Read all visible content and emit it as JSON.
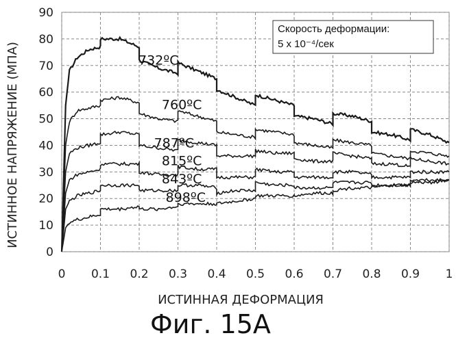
{
  "chart_data": {
    "type": "line",
    "xlabel": "ИСТИННАЯ ДЕФОРМАЦИЯ",
    "ylabel": "ИСТИННОЕ НАПРЯЖЕНИЕ (МПА)",
    "xlim": [
      0,
      1
    ],
    "ylim": [
      0,
      90
    ],
    "x_ticks": [
      "0",
      "0.1",
      "0.2",
      "0.3",
      "0.4",
      "0.5",
      "0.6",
      "0.7",
      "0.8",
      "0.9",
      "1"
    ],
    "y_ticks": [
      "0",
      "10",
      "20",
      "30",
      "40",
      "50",
      "60",
      "70",
      "80",
      "90"
    ],
    "grid": true,
    "annotation": {
      "line1": "Скорость деформации:",
      "line2": "5 x 10⁻⁴/сек"
    },
    "caption": "Фиг. 15А",
    "series": [
      {
        "name": "732ºС",
        "points": [
          [
            0,
            0
          ],
          [
            0.01,
            55
          ],
          [
            0.02,
            68
          ],
          [
            0.04,
            73
          ],
          [
            0.07,
            76
          ],
          [
            0.1,
            77
          ],
          [
            0.1,
            80
          ],
          [
            0.15,
            80
          ],
          [
            0.2,
            77
          ],
          [
            0.2,
            72
          ],
          [
            0.25,
            69
          ],
          [
            0.3,
            67
          ],
          [
            0.3,
            71
          ],
          [
            0.35,
            68
          ],
          [
            0.4,
            65
          ],
          [
            0.4,
            61
          ],
          [
            0.45,
            58
          ],
          [
            0.5,
            55
          ],
          [
            0.5,
            59
          ],
          [
            0.55,
            57
          ],
          [
            0.6,
            55
          ],
          [
            0.6,
            51
          ],
          [
            0.65,
            50
          ],
          [
            0.7,
            48
          ],
          [
            0.7,
            52
          ],
          [
            0.75,
            51
          ],
          [
            0.8,
            49
          ],
          [
            0.8,
            45
          ],
          [
            0.85,
            44
          ],
          [
            0.9,
            42
          ],
          [
            0.9,
            46
          ],
          [
            0.95,
            44
          ],
          [
            1.0,
            41
          ]
        ]
      },
      {
        "name": "760ºС",
        "points": [
          [
            0,
            0
          ],
          [
            0.01,
            40
          ],
          [
            0.02,
            49
          ],
          [
            0.04,
            53
          ],
          [
            0.07,
            54
          ],
          [
            0.1,
            55
          ],
          [
            0.1,
            57
          ],
          [
            0.15,
            58
          ],
          [
            0.2,
            56
          ],
          [
            0.2,
            52
          ],
          [
            0.25,
            50
          ],
          [
            0.3,
            49
          ],
          [
            0.3,
            53
          ],
          [
            0.35,
            51
          ],
          [
            0.4,
            49
          ],
          [
            0.4,
            45
          ],
          [
            0.45,
            44
          ],
          [
            0.5,
            43
          ],
          [
            0.5,
            46
          ],
          [
            0.55,
            45
          ],
          [
            0.6,
            44
          ],
          [
            0.6,
            41
          ],
          [
            0.65,
            40
          ],
          [
            0.7,
            39
          ],
          [
            0.7,
            42
          ],
          [
            0.75,
            41
          ],
          [
            0.8,
            40
          ],
          [
            0.8,
            37
          ],
          [
            0.85,
            36
          ],
          [
            0.9,
            35
          ],
          [
            0.9,
            38
          ],
          [
            0.95,
            37
          ],
          [
            1.0,
            36
          ]
        ]
      },
      {
        "name": "787ºС",
        "points": [
          [
            0,
            0
          ],
          [
            0.01,
            30
          ],
          [
            0.02,
            37
          ],
          [
            0.04,
            39
          ],
          [
            0.07,
            40
          ],
          [
            0.1,
            41
          ],
          [
            0.1,
            44
          ],
          [
            0.15,
            45
          ],
          [
            0.2,
            44
          ],
          [
            0.2,
            40
          ],
          [
            0.25,
            39
          ],
          [
            0.3,
            38
          ],
          [
            0.3,
            42
          ],
          [
            0.35,
            41
          ],
          [
            0.4,
            40
          ],
          [
            0.4,
            36
          ],
          [
            0.45,
            36
          ],
          [
            0.5,
            36
          ],
          [
            0.5,
            38
          ],
          [
            0.55,
            37
          ],
          [
            0.6,
            37
          ],
          [
            0.6,
            35
          ],
          [
            0.65,
            34
          ],
          [
            0.7,
            34
          ],
          [
            0.7,
            37
          ],
          [
            0.75,
            36
          ],
          [
            0.8,
            35
          ],
          [
            0.8,
            33
          ],
          [
            0.85,
            33
          ],
          [
            0.9,
            32
          ],
          [
            0.9,
            35
          ],
          [
            0.95,
            34
          ],
          [
            1.0,
            33
          ]
        ]
      },
      {
        "name": "815ºС",
        "points": [
          [
            0,
            0
          ],
          [
            0.01,
            22
          ],
          [
            0.02,
            27
          ],
          [
            0.04,
            29
          ],
          [
            0.07,
            30
          ],
          [
            0.1,
            31
          ],
          [
            0.1,
            33
          ],
          [
            0.15,
            33
          ],
          [
            0.2,
            33
          ],
          [
            0.2,
            30
          ],
          [
            0.25,
            29
          ],
          [
            0.3,
            29
          ],
          [
            0.3,
            32
          ],
          [
            0.35,
            31
          ],
          [
            0.4,
            31
          ],
          [
            0.4,
            28
          ],
          [
            0.45,
            28
          ],
          [
            0.5,
            28
          ],
          [
            0.5,
            31
          ],
          [
            0.55,
            30
          ],
          [
            0.6,
            30
          ],
          [
            0.6,
            28
          ],
          [
            0.65,
            28
          ],
          [
            0.7,
            28
          ],
          [
            0.7,
            30
          ],
          [
            0.75,
            30
          ],
          [
            0.8,
            29
          ],
          [
            0.8,
            28
          ],
          [
            0.85,
            28
          ],
          [
            0.9,
            28
          ],
          [
            0.9,
            30
          ],
          [
            0.95,
            30
          ],
          [
            1.0,
            30
          ]
        ]
      },
      {
        "name": "843ºС",
        "points": [
          [
            0,
            0
          ],
          [
            0.01,
            16
          ],
          [
            0.02,
            19
          ],
          [
            0.04,
            21
          ],
          [
            0.07,
            22
          ],
          [
            0.1,
            23
          ],
          [
            0.1,
            25
          ],
          [
            0.15,
            25
          ],
          [
            0.2,
            25
          ],
          [
            0.2,
            23
          ],
          [
            0.25,
            23
          ],
          [
            0.3,
            23
          ],
          [
            0.3,
            25
          ],
          [
            0.35,
            25
          ],
          [
            0.4,
            24
          ],
          [
            0.4,
            22
          ],
          [
            0.45,
            23
          ],
          [
            0.5,
            23
          ],
          [
            0.5,
            26
          ],
          [
            0.55,
            25
          ],
          [
            0.6,
            25
          ],
          [
            0.6,
            24
          ],
          [
            0.65,
            24
          ],
          [
            0.7,
            24
          ],
          [
            0.7,
            26
          ],
          [
            0.75,
            26
          ],
          [
            0.8,
            26
          ],
          [
            0.8,
            25
          ],
          [
            0.85,
            25
          ],
          [
            0.9,
            25
          ],
          [
            0.9,
            27
          ],
          [
            0.95,
            27
          ],
          [
            1.0,
            27
          ]
        ]
      },
      {
        "name": "898ºС",
        "points": [
          [
            0,
            0
          ],
          [
            0.01,
            9
          ],
          [
            0.02,
            11
          ],
          [
            0.04,
            12
          ],
          [
            0.07,
            13
          ],
          [
            0.1,
            14
          ],
          [
            0.1,
            16
          ],
          [
            0.15,
            16
          ],
          [
            0.2,
            17
          ],
          [
            0.2,
            16
          ],
          [
            0.25,
            16
          ],
          [
            0.3,
            17
          ],
          [
            0.3,
            18
          ],
          [
            0.35,
            18
          ],
          [
            0.4,
            18
          ],
          [
            0.4,
            18
          ],
          [
            0.45,
            19
          ],
          [
            0.5,
            20
          ],
          [
            0.5,
            21
          ],
          [
            0.55,
            21
          ],
          [
            0.6,
            21
          ],
          [
            0.6,
            21
          ],
          [
            0.65,
            22
          ],
          [
            0.7,
            22
          ],
          [
            0.7,
            23
          ],
          [
            0.75,
            24
          ],
          [
            0.8,
            24
          ],
          [
            0.8,
            24
          ],
          [
            0.85,
            25
          ],
          [
            0.9,
            25
          ],
          [
            0.9,
            26
          ],
          [
            0.95,
            26
          ],
          [
            1.0,
            27
          ]
        ]
      }
    ]
  }
}
